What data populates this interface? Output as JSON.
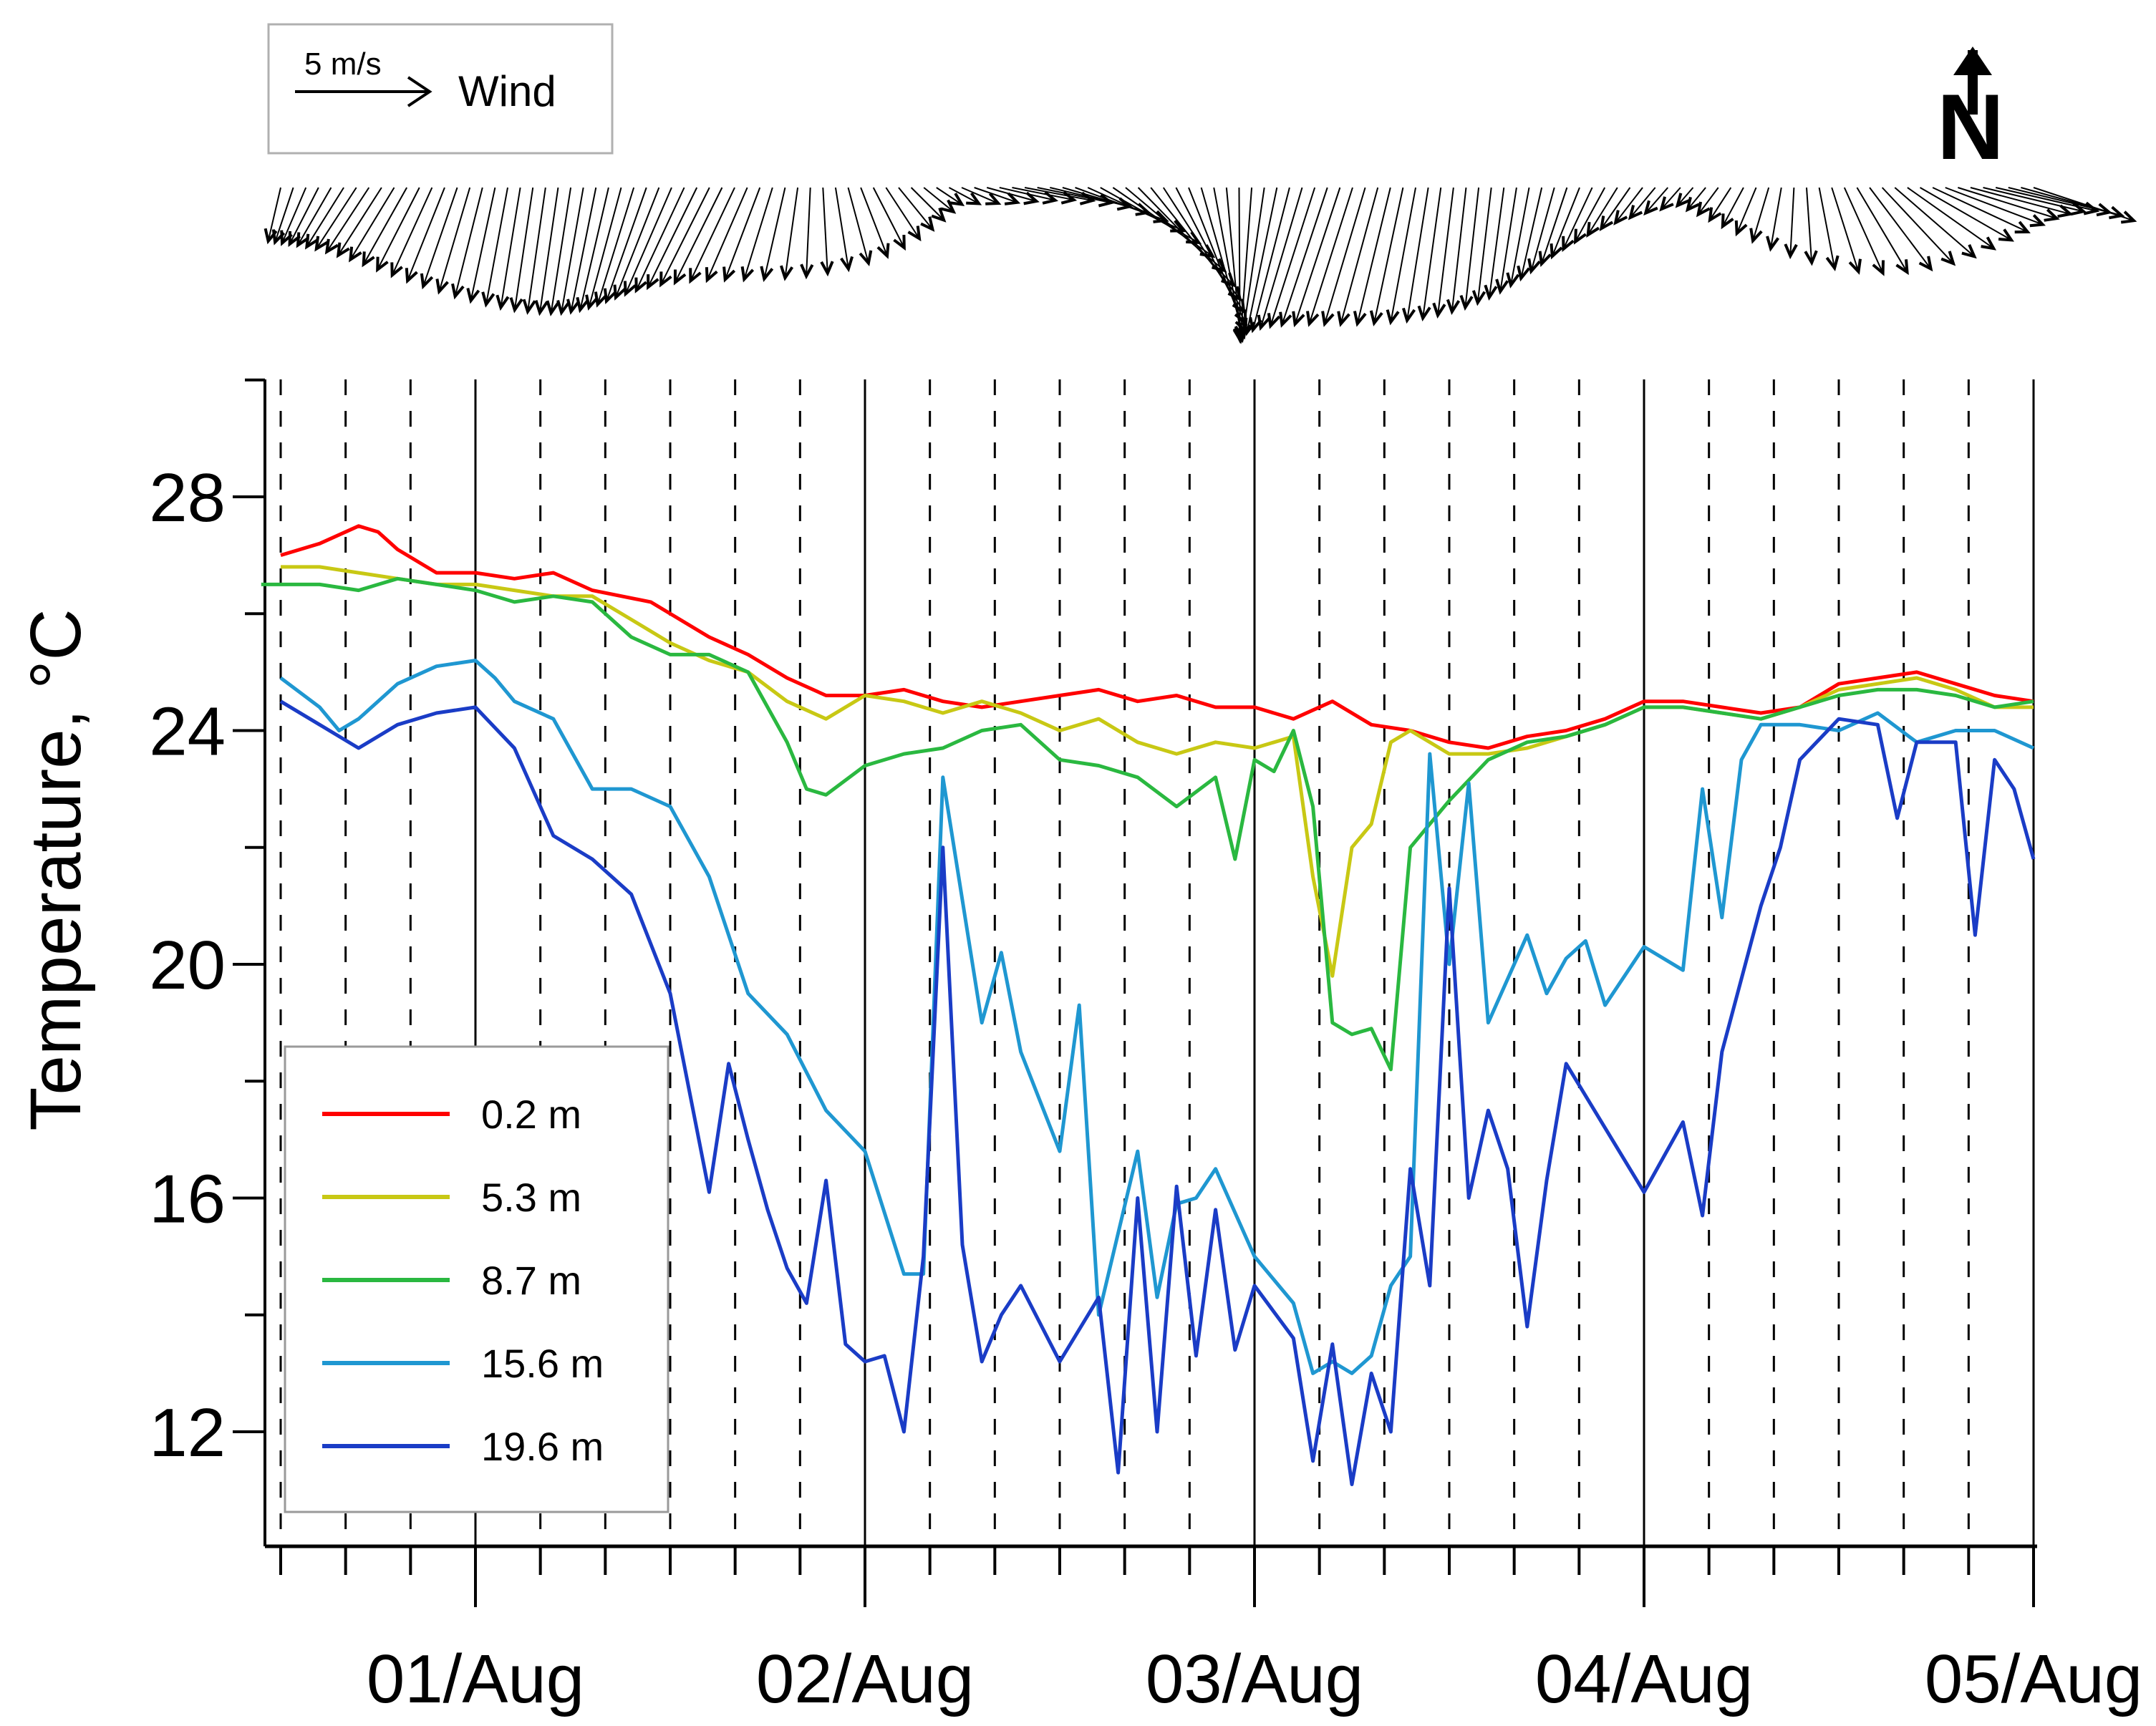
{
  "chart_data": {
    "type": "line",
    "title": "",
    "xlabel": "",
    "ylabel": "Temperature, °C",
    "ylim": [
      10,
      30
    ],
    "xlim": [
      0.5,
      5.0
    ],
    "ytick_values": [
      12,
      16,
      20,
      24,
      28
    ],
    "ytick_labels": [
      "12",
      "16",
      "20",
      "24",
      "28"
    ],
    "xtick_values": [
      1,
      2,
      3,
      4,
      5
    ],
    "xtick_labels": [
      "01/Aug",
      "02/Aug",
      "03/Aug",
      "04/Aug",
      "05/Aug"
    ],
    "legend_position": "bottom-left",
    "series": [
      {
        "name": "0.2 m",
        "color": "#ff0000",
        "x": [
          0.5,
          0.6,
          0.7,
          0.75,
          0.8,
          0.9,
          1.0,
          1.1,
          1.2,
          1.3,
          1.45,
          1.6,
          1.7,
          1.8,
          1.9,
          2.0,
          2.1,
          2.2,
          2.3,
          2.4,
          2.5,
          2.6,
          2.7,
          2.8,
          2.9,
          3.0,
          3.1,
          3.2,
          3.3,
          3.4,
          3.5,
          3.6,
          3.7,
          3.8,
          3.9,
          4.0,
          4.1,
          4.2,
          4.3,
          4.4,
          4.5,
          4.6,
          4.7,
          4.8,
          4.9,
          5.0
        ],
        "y": [
          27.0,
          27.2,
          27.5,
          27.4,
          27.1,
          26.7,
          26.7,
          26.6,
          26.7,
          26.4,
          26.2,
          25.6,
          25.3,
          24.9,
          24.6,
          24.6,
          24.7,
          24.5,
          24.4,
          24.5,
          24.6,
          24.7,
          24.5,
          24.6,
          24.4,
          24.4,
          24.2,
          24.5,
          24.1,
          24.0,
          23.8,
          23.7,
          23.9,
          24.0,
          24.2,
          24.5,
          24.5,
          24.4,
          24.3,
          24.4,
          24.8,
          24.9,
          25.0,
          24.8,
          24.6,
          24.5
        ]
      },
      {
        "name": "5.3 m",
        "color": "#c8c814",
        "x": [
          0.5,
          0.6,
          0.7,
          0.8,
          0.9,
          1.0,
          1.1,
          1.2,
          1.3,
          1.4,
          1.5,
          1.6,
          1.7,
          1.8,
          1.9,
          2.0,
          2.1,
          2.2,
          2.3,
          2.4,
          2.5,
          2.6,
          2.7,
          2.8,
          2.9,
          3.0,
          3.1,
          3.15,
          3.2,
          3.25,
          3.3,
          3.35,
          3.4,
          3.5,
          3.6,
          3.7,
          3.8,
          3.9,
          4.0,
          4.1,
          4.2,
          4.3,
          4.4,
          4.5,
          4.6,
          4.7,
          4.8,
          4.9,
          5.0
        ],
        "y": [
          26.8,
          26.8,
          26.7,
          26.6,
          26.5,
          26.5,
          26.4,
          26.3,
          26.3,
          25.9,
          25.5,
          25.2,
          25.0,
          24.5,
          24.2,
          24.6,
          24.5,
          24.3,
          24.5,
          24.3,
          24.0,
          24.2,
          23.8,
          23.6,
          23.8,
          23.7,
          23.9,
          21.5,
          19.8,
          22.0,
          22.4,
          23.8,
          24.0,
          23.6,
          23.6,
          23.7,
          23.9,
          24.1,
          24.4,
          24.4,
          24.3,
          24.2,
          24.4,
          24.7,
          24.8,
          24.9,
          24.7,
          24.4,
          24.4
        ]
      },
      {
        "name": "8.7 m",
        "color": "#2ab840",
        "x": [
          0.45,
          0.5,
          0.6,
          0.7,
          0.8,
          0.9,
          1.0,
          1.1,
          1.2,
          1.3,
          1.4,
          1.5,
          1.6,
          1.7,
          1.8,
          1.85,
          1.9,
          2.0,
          2.1,
          2.2,
          2.3,
          2.4,
          2.5,
          2.6,
          2.7,
          2.8,
          2.9,
          2.95,
          3.0,
          3.05,
          3.1,
          3.15,
          3.2,
          3.25,
          3.3,
          3.35,
          3.4,
          3.5,
          3.6,
          3.7,
          3.8,
          3.9,
          4.0,
          4.1,
          4.2,
          4.3,
          4.4,
          4.5,
          4.6,
          4.7,
          4.8,
          4.9,
          5.0
        ],
        "y": [
          26.5,
          26.5,
          26.5,
          26.4,
          26.6,
          26.5,
          26.4,
          26.2,
          26.3,
          26.2,
          25.6,
          25.3,
          25.3,
          25.0,
          23.8,
          23.0,
          22.9,
          23.4,
          23.6,
          23.7,
          24.0,
          24.1,
          23.5,
          23.4,
          23.2,
          22.7,
          23.2,
          21.8,
          23.5,
          23.3,
          24.0,
          22.7,
          19.0,
          18.8,
          18.9,
          18.2,
          22.0,
          22.8,
          23.5,
          23.8,
          23.9,
          24.1,
          24.4,
          24.4,
          24.3,
          24.2,
          24.4,
          24.6,
          24.7,
          24.7,
          24.6,
          24.4,
          24.5
        ]
      },
      {
        "name": "15.6 m",
        "color": "#1f97d1",
        "x": [
          0.5,
          0.6,
          0.65,
          0.7,
          0.8,
          0.9,
          1.0,
          1.05,
          1.1,
          1.2,
          1.3,
          1.4,
          1.5,
          1.6,
          1.7,
          1.8,
          1.9,
          2.0,
          2.1,
          2.15,
          2.2,
          2.3,
          2.35,
          2.4,
          2.5,
          2.55,
          2.6,
          2.7,
          2.75,
          2.8,
          2.85,
          2.9,
          3.0,
          3.1,
          3.15,
          3.2,
          3.25,
          3.3,
          3.35,
          3.4,
          3.45,
          3.5,
          3.55,
          3.6,
          3.7,
          3.75,
          3.8,
          3.85,
          3.9,
          4.0,
          4.1,
          4.15,
          4.2,
          4.25,
          4.3,
          4.4,
          4.5,
          4.6,
          4.7,
          4.8,
          4.9,
          5.0
        ],
        "y": [
          24.9,
          24.4,
          24.0,
          24.2,
          24.8,
          25.1,
          25.2,
          24.9,
          24.5,
          24.2,
          23.0,
          23.0,
          22.7,
          21.5,
          19.5,
          18.8,
          17.5,
          16.8,
          14.7,
          14.7,
          23.2,
          19.0,
          20.2,
          18.5,
          16.8,
          19.3,
          14.0,
          16.8,
          14.3,
          15.9,
          16.0,
          16.5,
          15.0,
          14.2,
          13.0,
          13.2,
          13.0,
          13.3,
          14.5,
          15.0,
          23.6,
          20.0,
          23.1,
          19.0,
          20.5,
          19.5,
          20.1,
          20.4,
          19.3,
          20.3,
          19.9,
          23.0,
          20.8,
          23.5,
          24.1,
          24.1,
          24.0,
          24.3,
          23.8,
          24.0,
          24.0,
          23.7
        ]
      },
      {
        "name": "19.6 m",
        "color": "#1a3cc6",
        "x": [
          0.5,
          0.6,
          0.7,
          0.8,
          0.9,
          1.0,
          1.1,
          1.2,
          1.3,
          1.4,
          1.5,
          1.6,
          1.65,
          1.7,
          1.75,
          1.8,
          1.85,
          1.9,
          1.95,
          2.0,
          2.05,
          2.1,
          2.15,
          2.2,
          2.25,
          2.3,
          2.35,
          2.4,
          2.5,
          2.6,
          2.65,
          2.7,
          2.75,
          2.8,
          2.85,
          2.9,
          2.95,
          3.0,
          3.1,
          3.15,
          3.2,
          3.25,
          3.3,
          3.35,
          3.4,
          3.45,
          3.5,
          3.55,
          3.6,
          3.65,
          3.7,
          3.75,
          3.8,
          3.9,
          4.0,
          4.1,
          4.15,
          4.2,
          4.3,
          4.35,
          4.4,
          4.5,
          4.6,
          4.65,
          4.7,
          4.8,
          4.85,
          4.9,
          4.95,
          5.0
        ],
        "y": [
          24.5,
          24.1,
          23.7,
          24.1,
          24.3,
          24.4,
          23.7,
          22.2,
          21.8,
          21.2,
          19.5,
          16.1,
          18.3,
          17.0,
          15.8,
          14.8,
          14.2,
          16.3,
          13.5,
          13.2,
          13.3,
          12.0,
          15.0,
          22.0,
          15.2,
          13.2,
          14.0,
          14.5,
          13.2,
          14.3,
          11.3,
          16.0,
          12.0,
          16.2,
          13.3,
          15.8,
          13.4,
          14.5,
          13.6,
          11.5,
          13.5,
          11.1,
          13.0,
          12.0,
          16.5,
          14.5,
          21.3,
          16.0,
          17.5,
          16.5,
          13.8,
          16.3,
          18.3,
          17.2,
          16.1,
          17.3,
          15.7,
          18.5,
          21.0,
          22.0,
          23.5,
          24.2,
          24.1,
          22.5,
          23.8,
          23.8,
          20.5,
          23.5,
          23.0,
          21.8
        ]
      }
    ],
    "wind": {
      "scale_label": "5 m/s",
      "legend_label": "Wind",
      "north_label": "N"
    }
  }
}
